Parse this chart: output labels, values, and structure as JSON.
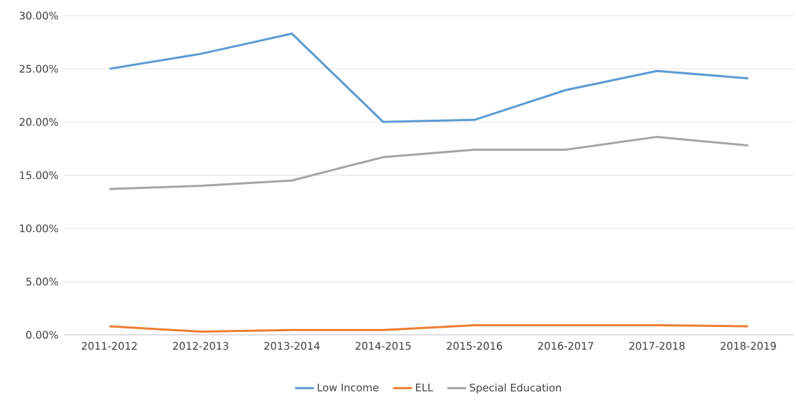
{
  "chart_data": {
    "type": "line",
    "categories": [
      "2011-2012",
      "2012-2013",
      "2013-2014",
      "2014-2015",
      "2015-2016",
      "2016-2017",
      "2017-2018",
      "2018-2019"
    ],
    "series": [
      {
        "name": "Low Income",
        "color": "#5b9bd5",
        "values": [
          25.0,
          26.4,
          28.3,
          20.0,
          20.2,
          23.0,
          24.8,
          24.1
        ]
      },
      {
        "name": "ELL",
        "color": "#ed7d31",
        "values": [
          0.8,
          0.3,
          0.45,
          0.45,
          0.9,
          0.9,
          0.9,
          0.8
        ]
      },
      {
        "name": "Special Education",
        "color": "#a5a5a5",
        "values": [
          13.7,
          14.0,
          14.5,
          16.7,
          17.4,
          17.4,
          18.6,
          17.8
        ]
      }
    ],
    "ylim": [
      0,
      30
    ],
    "yticks": [
      {
        "value": 0,
        "label": "0.00%"
      },
      {
        "value": 5,
        "label": "5.00%"
      },
      {
        "value": 10,
        "label": "10.00%"
      },
      {
        "value": 15,
        "label": "15.00%"
      },
      {
        "value": 20,
        "label": "20.00%"
      },
      {
        "value": 25,
        "label": "25.00%"
      },
      {
        "value": 30,
        "label": "30.00%"
      }
    ],
    "grid": "y",
    "legend": "bottom"
  }
}
